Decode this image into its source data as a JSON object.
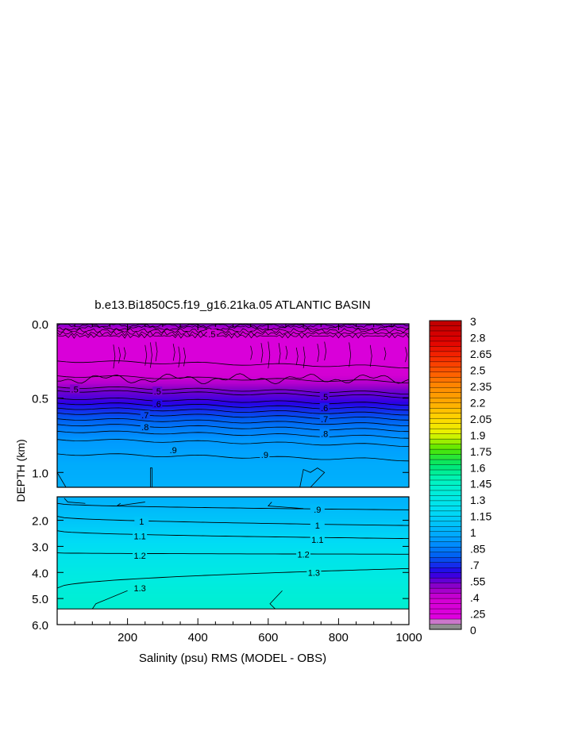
{
  "chart_data": {
    "type": "heatmap",
    "title": "b.e13.Bi1850C5.f19_g16.21ka.05 ATLANTIC BASIN",
    "xlabel": "Salinity (psu) RMS (MODEL - OBS)",
    "ylabel": "DEPTH (km)",
    "xlim": [
      0,
      1000
    ],
    "x_ticks": [
      "200",
      "400",
      "600",
      "800",
      "1000"
    ],
    "x_tick_values": [
      200,
      400,
      600,
      800,
      1000
    ],
    "upper_panel": {
      "ylim": [
        0.0,
        1.1
      ],
      "y_ticks": [
        "0.0",
        "0.5",
        "1.0"
      ],
      "y_tick_values": [
        0.0,
        0.5,
        1.0
      ]
    },
    "lower_panel": {
      "ylim": [
        1.1,
        6.0
      ],
      "y_ticks": [
        "2.0",
        "3.0",
        "4.0",
        "5.0",
        "6.0"
      ],
      "y_tick_values": [
        2.0,
        3.0,
        4.0,
        5.0,
        6.0
      ],
      "land_below_km": 5.4
    },
    "colorbar": {
      "labels": [
        "3",
        "2.8",
        "2.65",
        "2.5",
        "2.35",
        "2.2",
        "2.05",
        "1.9",
        "1.75",
        "1.6",
        "1.45",
        "1.3",
        "1.15",
        "1",
        ".85",
        ".7",
        ".55",
        ".4",
        ".25",
        "0"
      ],
      "label_values": [
        3,
        2.8,
        2.65,
        2.5,
        2.35,
        2.2,
        2.05,
        1.9,
        1.75,
        1.6,
        1.45,
        1.3,
        1.15,
        1.0,
        0.85,
        0.7,
        0.55,
        0.4,
        0.25,
        0
      ]
    },
    "depth_profile": [
      {
        "depth": 0.0,
        "value": 0.45
      },
      {
        "depth": 0.05,
        "value": 0.3
      },
      {
        "depth": 0.1,
        "value": 0.2
      },
      {
        "depth": 0.25,
        "value": 0.2
      },
      {
        "depth": 0.4,
        "value": 0.35
      },
      {
        "depth": 0.45,
        "value": 0.45
      },
      {
        "depth": 0.5,
        "value": 0.5
      },
      {
        "depth": 0.6,
        "value": 0.65
      },
      {
        "depth": 0.7,
        "value": 0.78
      },
      {
        "depth": 0.8,
        "value": 0.87
      },
      {
        "depth": 0.95,
        "value": 0.93
      },
      {
        "depth": 1.1,
        "value": 0.95
      },
      {
        "depth": 1.5,
        "value": 0.98
      },
      {
        "depth": 2.0,
        "value": 1.03
      },
      {
        "depth": 2.5,
        "value": 1.1
      },
      {
        "depth": 3.0,
        "value": 1.17
      },
      {
        "depth": 3.5,
        "value": 1.23
      },
      {
        "depth": 4.0,
        "value": 1.28
      },
      {
        "depth": 4.5,
        "value": 1.32
      },
      {
        "depth": 5.0,
        "value": 1.35
      },
      {
        "depth": 5.4,
        "value": 1.37
      }
    ],
    "contour_labels_upper": [
      {
        "text": ".5",
        "x": 50,
        "depth": 0.44
      },
      {
        "text": ".5",
        "x": 285,
        "depth": 0.455
      },
      {
        "text": ".5",
        "x": 760,
        "depth": 0.49
      },
      {
        "text": ".5",
        "x": 440,
        "depth": 0.07
      },
      {
        "text": ".6",
        "x": 285,
        "depth": 0.54
      },
      {
        "text": ".6",
        "x": 760,
        "depth": 0.565
      },
      {
        "text": ".7",
        "x": 250,
        "depth": 0.615
      },
      {
        "text": ".7",
        "x": 760,
        "depth": 0.64
      },
      {
        "text": ".8",
        "x": 250,
        "depth": 0.695
      },
      {
        "text": ".8",
        "x": 760,
        "depth": 0.74
      },
      {
        "text": ".9",
        "x": 330,
        "depth": 0.85
      },
      {
        "text": ".9",
        "x": 590,
        "depth": 0.88
      }
    ],
    "contour_labels_lower": [
      {
        "text": ".9",
        "x": 740,
        "depth": 1.58
      },
      {
        "text": "1",
        "x": 240,
        "depth": 2.05
      },
      {
        "text": "1",
        "x": 740,
        "depth": 2.2
      },
      {
        "text": "1.1",
        "x": 235,
        "depth": 2.6
      },
      {
        "text": "1.1",
        "x": 740,
        "depth": 2.75
      },
      {
        "text": "1.2",
        "x": 235,
        "depth": 3.35
      },
      {
        "text": "1.2",
        "x": 700,
        "depth": 3.3
      },
      {
        "text": "1.3",
        "x": 235,
        "depth": 4.6
      },
      {
        "text": "1.3",
        "x": 730,
        "depth": 4.0
      }
    ]
  }
}
